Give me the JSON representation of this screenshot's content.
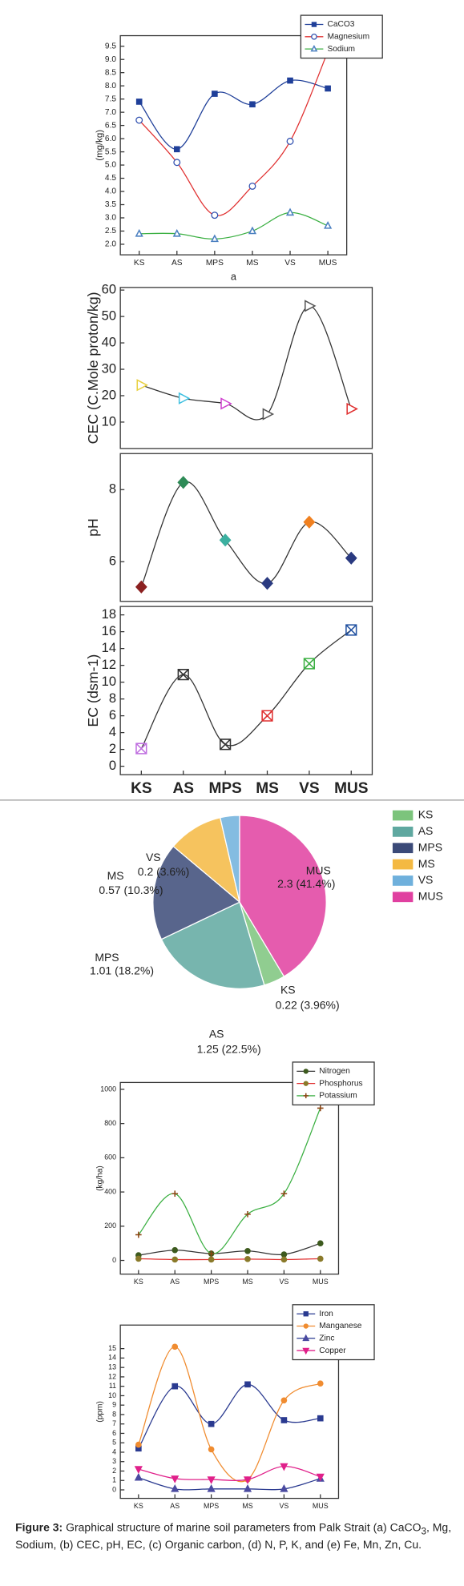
{
  "chart_data": [
    {
      "type": "line",
      "ylabel": "(mg/kg)",
      "xlabel": "a",
      "categories": [
        "KS",
        "AS",
        "MPS",
        "MS",
        "VS",
        "MUS"
      ],
      "ylim": [
        1.6,
        9.9
      ],
      "yticks": [
        {
          "value": 2,
          "label": "2.0"
        },
        2.5,
        {
          "value": 3,
          "label": "3.0"
        },
        3.5,
        {
          "value": 4,
          "label": "4.0"
        },
        4.5,
        {
          "value": 5,
          "label": "5.0"
        },
        5.5,
        {
          "value": 6,
          "label": "6.0"
        },
        6.5,
        {
          "value": 7,
          "label": "7.0"
        },
        7.5,
        {
          "value": 8,
          "label": "8.0"
        },
        8.5,
        {
          "value": 9,
          "label": "9.0"
        },
        9.5
      ],
      "legend": "upper right",
      "series": [
        {
          "name": "CaCO3",
          "color": "#1f3f99",
          "marker": "square",
          "marker_color": "#1f3f99",
          "values": [
            7.4,
            5.6,
            7.7,
            7.3,
            8.2,
            7.9
          ]
        },
        {
          "name": "Magnesium",
          "color": "#e03030",
          "marker": "circle-open",
          "marker_color": "#3050b0",
          "values": [
            6.7,
            5.1,
            3.1,
            4.2,
            5.9,
            9.3
          ]
        },
        {
          "name": "Sodium",
          "color": "#3cb043",
          "marker": "triangle-open",
          "marker_color": "#4a7fc0",
          "values": [
            2.4,
            2.4,
            2.2,
            2.5,
            3.2,
            2.7
          ]
        }
      ]
    },
    {
      "type": "line",
      "ylabel": "CEC (C.Mole proton/kg)",
      "ylim": [
        0,
        61
      ],
      "yticks": [
        10,
        20,
        30,
        40,
        50,
        60
      ],
      "color": "#333333",
      "marker": "triangle-right-open",
      "marker_colors": [
        "#e8d040",
        "#40c0e0",
        "#d040d0",
        "#555555",
        "#555555",
        "#e03030"
      ],
      "values": [
        24,
        19,
        17,
        13,
        54,
        15
      ]
    },
    {
      "type": "line",
      "ylabel": "pH",
      "ylim": [
        4.9,
        9.0
      ],
      "yticks": [
        6,
        8
      ],
      "color": "#333333",
      "marker": "diamond",
      "marker_colors": [
        "#8b2020",
        "#2e8b57",
        "#3cb0a0",
        "#2a3a80",
        "#f08020",
        "#2a3a80"
      ],
      "values": [
        5.3,
        8.2,
        6.6,
        5.4,
        7.1,
        6.1
      ]
    },
    {
      "type": "line",
      "ylabel": "EC (dsm-1)",
      "categories": [
        "KS",
        "AS",
        "MPS",
        "MS",
        "VS",
        "MUS"
      ],
      "ylim": [
        -1,
        19
      ],
      "yticks": [
        0,
        2,
        4,
        6,
        8,
        10,
        12,
        14,
        16,
        18
      ],
      "color": "#333333",
      "marker": "x-square",
      "marker_colors": [
        "#c070e0",
        "#333333",
        "#333333",
        "#e03030",
        "#3cb043",
        "#2050a0"
      ],
      "values": [
        2.1,
        10.9,
        2.6,
        6.0,
        12.2,
        16.2
      ]
    },
    {
      "type": "pie",
      "categories": [
        "KS",
        "AS",
        "MPS",
        "MS",
        "VS",
        "MUS"
      ],
      "values": [
        0.22,
        1.25,
        1.01,
        0.57,
        0.2,
        2.3
      ],
      "value_labels": [
        "0.22 (3.96%)",
        "1.25 (22.5%)",
        "1.01 (18.2%)",
        "0.57 (10.3%)",
        "0.2 (3.6%)",
        "2.3 (41.4%)"
      ],
      "colors": [
        "#7cc47c",
        "#5fa8a0",
        "#3b4a78",
        "#f4b942",
        "#6fb0dc",
        "#e040a0"
      ],
      "legend": "right"
    },
    {
      "type": "line",
      "ylabel": "(kg/ha)",
      "categories": [
        "KS",
        "AS",
        "MPS",
        "MS",
        "VS",
        "MUS"
      ],
      "ylim": [
        -80,
        1040
      ],
      "yticks": [
        0,
        200,
        400,
        600,
        800,
        1000
      ],
      "legend": "upper right",
      "series": [
        {
          "name": "Nitrogen",
          "color": "#333333",
          "marker": "circle",
          "marker_color": "#3d5a1e",
          "values": [
            30,
            60,
            40,
            55,
            35,
            100
          ]
        },
        {
          "name": "Phosphorus",
          "color": "#e03030",
          "marker": "circle",
          "marker_color": "#8a7a2a",
          "values": [
            10,
            5,
            5,
            8,
            5,
            10
          ]
        },
        {
          "name": "Potassium",
          "color": "#3cb043",
          "marker": "plus",
          "marker_color": "#8b4513",
          "values": [
            150,
            390,
            40,
            270,
            390,
            890
          ]
        }
      ]
    },
    {
      "type": "line",
      "ylabel": "(ppm)",
      "categories": [
        "KS",
        "AS",
        "MPS",
        "MS",
        "VS",
        "MUS"
      ],
      "ylim": [
        -0.9,
        17.5
      ],
      "yticks": [
        0,
        1,
        2,
        3,
        4,
        5,
        6,
        7,
        8,
        9,
        10,
        11,
        12,
        13,
        14,
        15
      ],
      "legend": "upper right",
      "series": [
        {
          "name": "Iron",
          "color": "#2a3a90",
          "marker": "square",
          "marker_color": "#2a3a90",
          "values": [
            4.4,
            11,
            7,
            11.2,
            7.4,
            7.6
          ]
        },
        {
          "name": "Manganese",
          "color": "#f08c30",
          "marker": "circle",
          "marker_color": "#f08c30",
          "values": [
            4.8,
            15.2,
            4.3,
            1.1,
            9.5,
            11.3
          ]
        },
        {
          "name": "Zinc",
          "color": "#2a3a90",
          "marker": "triangle",
          "marker_color": "#4a4aa0",
          "values": [
            1.3,
            0.1,
            0.1,
            0.1,
            0.1,
            1.2
          ]
        },
        {
          "name": "Copper",
          "color": "#e0208a",
          "marker": "triangle-down",
          "marker_color": "#e0208a",
          "values": [
            2.2,
            1.2,
            1.1,
            1.1,
            2.5,
            1.4
          ]
        }
      ]
    }
  ],
  "caption": {
    "label": "Figure 3:",
    "text": " Graphical structure of marine soil parameters from Palk Strait (a) CaCO",
    "subscript": "3",
    "text_after": ", Mg, Sodium, (b) CEC, pH, EC, (c) Organic carbon, (d) N, P, K, and (e) Fe, Mn, Zn, Cu."
  }
}
